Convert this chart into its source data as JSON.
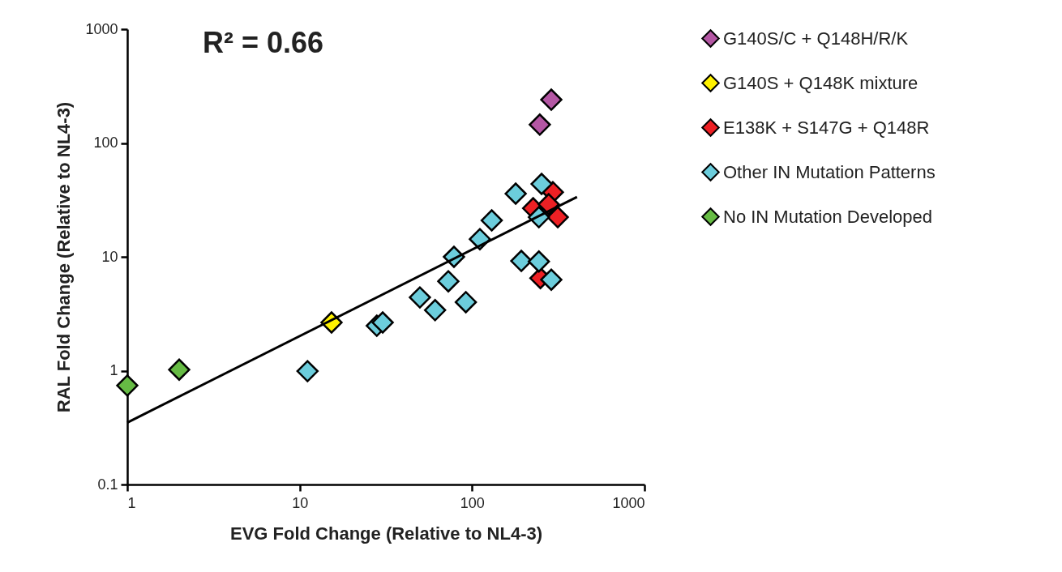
{
  "chart_data": {
    "type": "scatter",
    "xlabel": "EVG Fold Change (Relative to NL4-3)",
    "ylabel": "RAL Fold Change (Relative to NL4-3)",
    "annotations": [
      "R² = 0.66"
    ],
    "log": "xy",
    "xlim": [
      1,
      1000
    ],
    "ylim": [
      0.1,
      1000
    ],
    "xticks": [
      1,
      10,
      100,
      1000
    ],
    "yticks": [
      0.1,
      1,
      10,
      100,
      1000
    ],
    "grid": false,
    "legend": "right",
    "marker": "diamond",
    "series": [
      {
        "name": "G140S/C + Q148H/R/K",
        "color": "#b457a4",
        "x": [
          288,
          247
        ],
        "values": [
          240,
          145
        ]
      },
      {
        "name": "G140S + Q148K mixture",
        "color": "#fff200",
        "x": [
          15.3
        ],
        "values": [
          2.65
        ]
      },
      {
        "name": "E138K + S147G + Q148R",
        "color": "#ed2024",
        "x": [
          294,
          226,
          278,
          314,
          249
        ],
        "values": [
          37,
          26.7,
          29,
          22.3,
          6.5
        ]
      },
      {
        "name": "Other IN Mutation Patterns",
        "color": "#6ccddc",
        "x": [
          179,
          253,
          130,
          111,
          244,
          78.5,
          72.8,
          193,
          244,
          288,
          49.8,
          61,
          92,
          28,
          30.3,
          11.1
        ],
        "values": [
          35.9,
          43.7,
          20.9,
          14.3,
          22.3,
          10,
          6.1,
          9.2,
          9.1,
          6.3,
          4.4,
          3.4,
          4.0,
          2.48,
          2.65,
          0.99
        ]
      },
      {
        "name": "No IN Mutation Developed",
        "color": "#66bb44",
        "x": [
          1.0,
          2.0
        ],
        "values": [
          0.74,
          1.02
        ]
      },
      {
        "type": "line",
        "marker": "none",
        "color": "#000000",
        "x": [
          1,
          406
        ],
        "values": [
          0.35,
          33.6
        ]
      }
    ]
  }
}
